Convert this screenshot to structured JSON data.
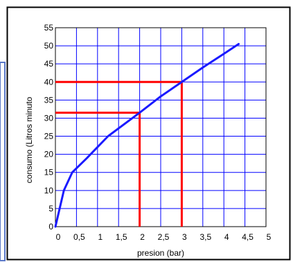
{
  "chart_data": {
    "type": "line",
    "xlabel": "presion (bar)",
    "ylabel": "consumo (Litros minuto",
    "xlim": [
      0,
      5
    ],
    "ylim": [
      0,
      55
    ],
    "grid": true,
    "x_ticks": [
      {
        "value": 0,
        "label": "0"
      },
      {
        "value": 0.5,
        "label": "0,5"
      },
      {
        "value": 1,
        "label": "1"
      },
      {
        "value": 1.5,
        "label": "1,5"
      },
      {
        "value": 2,
        "label": "2"
      },
      {
        "value": 2.5,
        "label": "2,5"
      },
      {
        "value": 3,
        "label": "3"
      },
      {
        "value": 3.5,
        "label": "3,5"
      },
      {
        "value": 4,
        "label": "4"
      },
      {
        "value": 4.5,
        "label": "4,5"
      },
      {
        "value": 5,
        "label": "5"
      }
    ],
    "y_ticks": [
      {
        "value": 0,
        "label": "0"
      },
      {
        "value": 5,
        "label": "5"
      },
      {
        "value": 10,
        "label": "10"
      },
      {
        "value": 15,
        "label": "15"
      },
      {
        "value": 20,
        "label": "20"
      },
      {
        "value": 25,
        "label": "25"
      },
      {
        "value": 30,
        "label": "30"
      },
      {
        "value": 35,
        "label": "35"
      },
      {
        "value": 40,
        "label": "40"
      },
      {
        "value": 45,
        "label": "45"
      },
      {
        "value": 50,
        "label": "50"
      },
      {
        "value": 55,
        "label": "55"
      }
    ],
    "series": [
      {
        "color": "#1a1aff",
        "x": [
          0,
          0.1,
          0.2,
          0.4,
          0.75,
          1.25,
          2.0,
          2.5,
          3.0,
          3.5,
          4.0,
          4.35
        ],
        "y": [
          0,
          5,
          10,
          15,
          19,
          25,
          31.5,
          36,
          40,
          44,
          47.8,
          50.5
        ]
      }
    ],
    "reference_lines": [
      {
        "color": "#ff0000",
        "x": 2,
        "y": 31.5
      },
      {
        "color": "#ff0000",
        "x": 3,
        "y": 40
      }
    ],
    "colors": {
      "grid": "#0000ff",
      "frame": "#000000",
      "left_panel": "#5a78c8"
    }
  }
}
